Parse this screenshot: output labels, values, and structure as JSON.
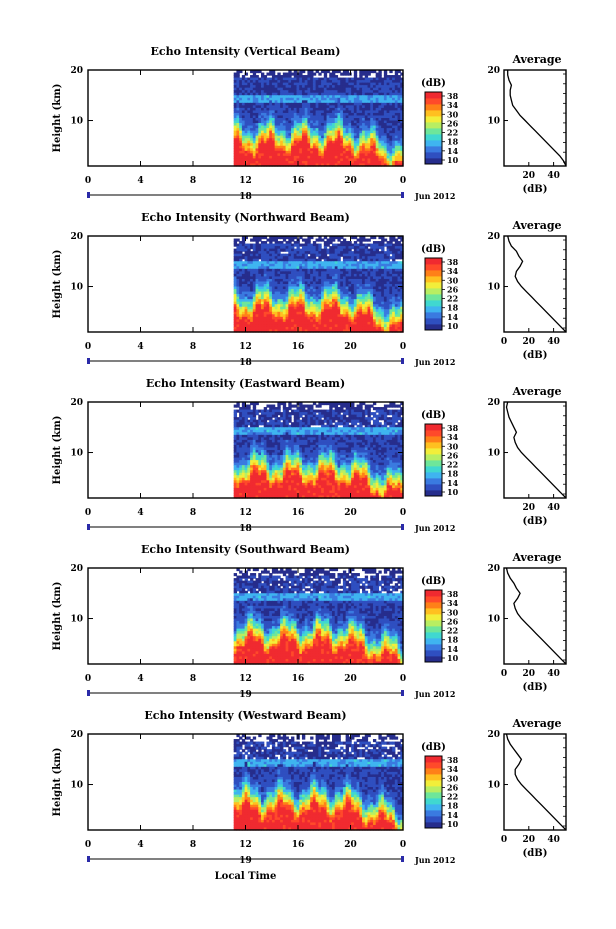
{
  "figure": {
    "xlabel_bottom": "Local Time",
    "date_label": "Jun 2012",
    "avg_xlabel": "(dB)",
    "avg_title": "Average"
  },
  "colorbar": {
    "label": "(dB)",
    "ticks": [
      "38",
      "34",
      "30",
      "26",
      "22",
      "18",
      "14",
      "10"
    ],
    "colors": [
      "#262d8c",
      "#2f4fc0",
      "#3a7ae0",
      "#3fb4f0",
      "#40d8d0",
      "#6ee69a",
      "#b8ee62",
      "#f2ee3a",
      "#ffc020",
      "#ff8018",
      "#ff4a2a",
      "#f02a30"
    ]
  },
  "chart_data": [
    {
      "type": "heatmap",
      "title": "Echo Intensity (Vertical Beam)",
      "ylabel": "Height (km)",
      "xlabel": "Jun 2012",
      "x_ticks": [
        "0",
        "4",
        "8",
        "12",
        "16",
        "20",
        "0"
      ],
      "y_ticks": [
        "20",
        "10"
      ],
      "date_day": "18",
      "xlim": [
        0,
        24
      ],
      "ylim": [
        1,
        20
      ],
      "data_start_hour": 11.1,
      "zlim": [
        10,
        38
      ],
      "average_profile": {
        "title": "Average",
        "xlabel": "(dB)",
        "x_ticks": [
          "20",
          "40"
        ],
        "y_ticks": [
          "20",
          "10"
        ],
        "xlim": [
          0,
          50
        ],
        "ylim": [
          1,
          20
        ],
        "x": [
          50,
          48,
          45,
          41,
          37,
          33,
          29,
          25,
          21,
          17,
          13,
          10,
          7,
          6,
          5,
          5,
          6,
          4,
          3,
          3
        ],
        "y": [
          1,
          2,
          3,
          4,
          5,
          6,
          7,
          8,
          9,
          10,
          11,
          12,
          13,
          14,
          15,
          16,
          17,
          18,
          19,
          20
        ]
      }
    },
    {
      "type": "heatmap",
      "title": "Echo Intensity (Northward Beam)",
      "ylabel": "Height (km)",
      "xlabel": "Jun 2012",
      "x_ticks": [
        "0",
        "4",
        "8",
        "12",
        "16",
        "20",
        "0"
      ],
      "y_ticks": [
        "20",
        "10"
      ],
      "date_day": "18",
      "xlim": [
        0,
        24
      ],
      "ylim": [
        1,
        20
      ],
      "data_start_hour": 11.1,
      "zlim": [
        10,
        38
      ],
      "average_profile": {
        "title": "Average",
        "xlabel": "(dB)",
        "x_ticks": [
          "0",
          "20",
          "40"
        ],
        "y_ticks": [
          "20",
          "10"
        ],
        "xlim": [
          0,
          50
        ],
        "ylim": [
          1,
          20
        ],
        "x": [
          50,
          46,
          42,
          38,
          34,
          30,
          26,
          22,
          18,
          14,
          11,
          9,
          10,
          13,
          15,
          12,
          10,
          6,
          4,
          3
        ],
        "y": [
          1,
          2,
          3,
          4,
          5,
          6,
          7,
          8,
          9,
          10,
          11,
          12,
          13,
          14,
          15,
          16,
          17,
          18,
          19,
          20
        ]
      }
    },
    {
      "type": "heatmap",
      "title": "Echo Intensity (Eastward Beam)",
      "ylabel": "Height (km)",
      "xlabel": "Jun 2012",
      "x_ticks": [
        "0",
        "4",
        "8",
        "12",
        "16",
        "20",
        "0"
      ],
      "y_ticks": [
        "20",
        "10"
      ],
      "date_day": "18",
      "xlim": [
        0,
        24
      ],
      "ylim": [
        1,
        20
      ],
      "data_start_hour": 11.1,
      "zlim": [
        10,
        38
      ],
      "average_profile": {
        "title": "Average",
        "xlabel": "(dB)",
        "x_ticks": [
          "20",
          "40"
        ],
        "y_ticks": [
          "20",
          "10"
        ],
        "xlim": [
          0,
          50
        ],
        "ylim": [
          1,
          20
        ],
        "x": [
          50,
          46,
          42,
          38,
          34,
          30,
          26,
          22,
          18,
          14,
          11,
          9,
          8,
          10,
          8,
          6,
          4,
          3,
          2,
          3
        ],
        "y": [
          1,
          2,
          3,
          4,
          5,
          6,
          7,
          8,
          9,
          10,
          11,
          12,
          13,
          14,
          15,
          16,
          17,
          18,
          19,
          20
        ]
      }
    },
    {
      "type": "heatmap",
      "title": "Echo Intensity (Southward Beam)",
      "ylabel": "Height (km)",
      "xlabel": "Jun 2012",
      "x_ticks": [
        "0",
        "4",
        "8",
        "12",
        "16",
        "20",
        "0"
      ],
      "y_ticks": [
        "20",
        "10"
      ],
      "date_day": "19",
      "xlim": [
        0,
        24
      ],
      "ylim": [
        1,
        20
      ],
      "data_start_hour": 11.1,
      "zlim": [
        10,
        38
      ],
      "average_profile": {
        "title": "Average",
        "xlabel": "(dB)",
        "x_ticks": [
          "0",
          "20",
          "40"
        ],
        "y_ticks": [
          "20",
          "10"
        ],
        "xlim": [
          0,
          50
        ],
        "ylim": [
          1,
          20
        ],
        "x": [
          50,
          46,
          42,
          38,
          34,
          30,
          26,
          22,
          18,
          14,
          11,
          9,
          8,
          11,
          13,
          10,
          8,
          5,
          3,
          2
        ],
        "y": [
          1,
          2,
          3,
          4,
          5,
          6,
          7,
          8,
          9,
          10,
          11,
          12,
          13,
          14,
          15,
          16,
          17,
          18,
          19,
          20
        ]
      }
    },
    {
      "type": "heatmap",
      "title": "Echo Intensity (Westward Beam)",
      "ylabel": "Height (km)",
      "xlabel": "Jun 2012",
      "x_ticks": [
        "0",
        "4",
        "8",
        "12",
        "16",
        "20",
        "0"
      ],
      "y_ticks": [
        "20",
        "10"
      ],
      "date_day": "19",
      "xlim": [
        0,
        24
      ],
      "ylim": [
        1,
        20
      ],
      "data_start_hour": 11.1,
      "zlim": [
        10,
        38
      ],
      "average_profile": {
        "title": "Average",
        "xlabel": "(dB)",
        "x_ticks": [
          "0",
          "20",
          "40"
        ],
        "y_ticks": [
          "20",
          "10"
        ],
        "xlim": [
          0,
          50
        ],
        "ylim": [
          1,
          20
        ],
        "x": [
          50,
          46,
          42,
          38,
          34,
          30,
          26,
          22,
          18,
          14,
          11,
          9,
          9,
          12,
          14,
          11,
          8,
          5,
          3,
          2
        ],
        "y": [
          1,
          2,
          3,
          4,
          5,
          6,
          7,
          8,
          9,
          10,
          11,
          12,
          13,
          14,
          15,
          16,
          17,
          18,
          19,
          20
        ]
      }
    }
  ]
}
